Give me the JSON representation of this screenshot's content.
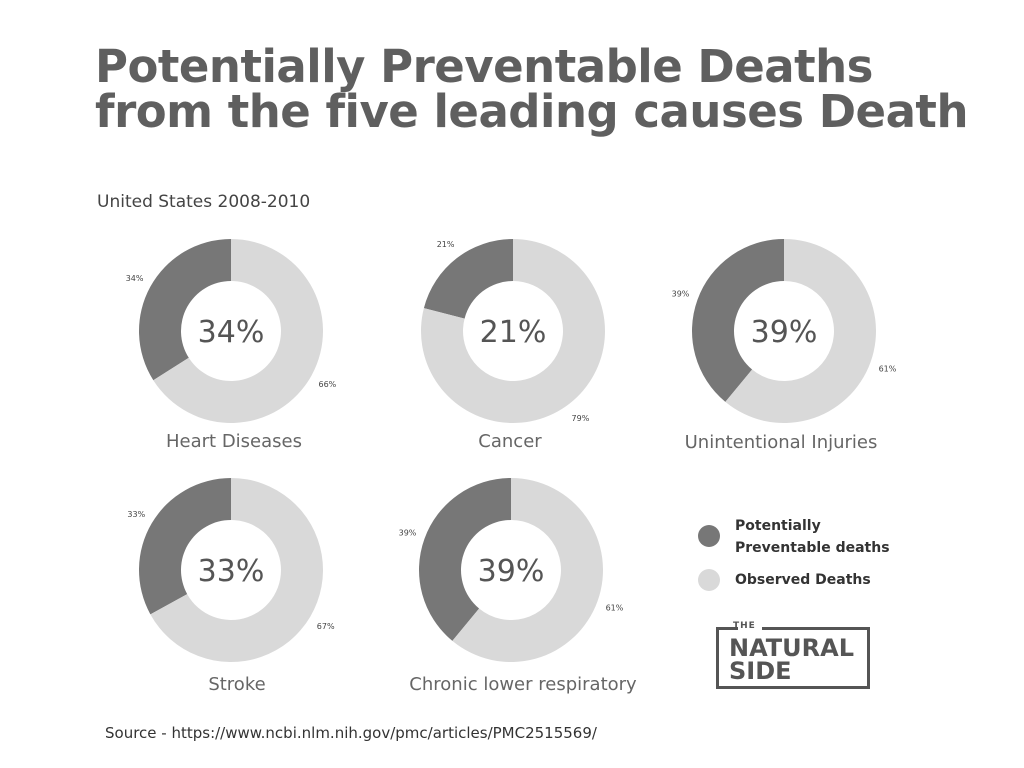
{
  "title": "Potentially Preventable Deaths from the five leading causes Death",
  "subtitle": "United States 2008-2010",
  "colors": {
    "preventable": "#777777",
    "observed": "#d9d9d9"
  },
  "chart_data": [
    {
      "type": "pie",
      "title": "Heart Diseases",
      "categories": [
        "Potentially Preventable deaths",
        "Observed Deaths"
      ],
      "values": [
        34,
        66
      ],
      "center_label": "34%",
      "slice_labels": [
        "34%",
        "66%"
      ]
    },
    {
      "type": "pie",
      "title": "Cancer",
      "categories": [
        "Potentially Preventable deaths",
        "Observed Deaths"
      ],
      "values": [
        21,
        79
      ],
      "center_label": "21%",
      "slice_labels": [
        "21%",
        "79%"
      ]
    },
    {
      "type": "pie",
      "title": "Unintentional Injuries",
      "categories": [
        "Potentially Preventable deaths",
        "Observed Deaths"
      ],
      "values": [
        39,
        61
      ],
      "center_label": "39%",
      "slice_labels": [
        "39%",
        "61%"
      ]
    },
    {
      "type": "pie",
      "title": "Stroke",
      "categories": [
        "Potentially Preventable deaths",
        "Observed Deaths"
      ],
      "values": [
        33,
        67
      ],
      "center_label": "33%",
      "slice_labels": [
        "33%",
        "67%"
      ]
    },
    {
      "type": "pie",
      "title": "Chronic lower respiratory",
      "categories": [
        "Potentially Preventable deaths",
        "Observed Deaths"
      ],
      "values": [
        39,
        61
      ],
      "center_label": "39%",
      "slice_labels": [
        "39%",
        "61%"
      ]
    }
  ],
  "legend": {
    "position": "bottom-right",
    "items": [
      "Potentially Preventable deaths",
      "Observed Deaths"
    ]
  },
  "logo": {
    "line0": "THE",
    "line1": "NATURAL",
    "line2": "SIDE"
  },
  "source": "Source - https://www.ncbi.nlm.nih.gov/pmc/articles/PMC2515569/"
}
